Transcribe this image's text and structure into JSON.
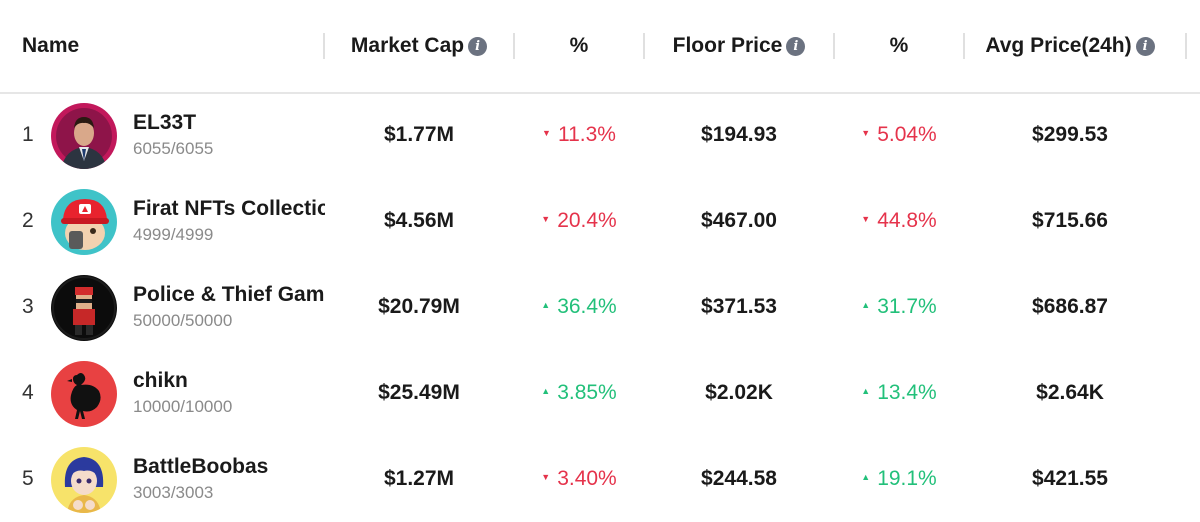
{
  "header": {
    "name": "Name",
    "market_cap": "Market Cap",
    "pct1": "%",
    "floor_price": "Floor Price",
    "pct2": "%",
    "avg_price": "Avg Price(24h)",
    "info_glyph": "i"
  },
  "colors": {
    "down": "#e5334b",
    "up": "#22c07a",
    "info_icon": "#6b7280"
  },
  "rows": [
    {
      "rank": "1",
      "name": "EL33T",
      "count": "6055/6055",
      "market_cap": "$1.77M",
      "change1": "11.3%",
      "dir1": "down",
      "arrow1": "▼",
      "floor": "$194.93",
      "change2": "5.04%",
      "dir2": "down",
      "arrow2": "▼",
      "avg": "$299.53",
      "avatar": "man-in-suit-avatar"
    },
    {
      "rank": "2",
      "name": "Firat NFTs Collection",
      "count": "4999/4999",
      "market_cap": "$4.56M",
      "change1": "20.4%",
      "dir1": "down",
      "arrow1": "▼",
      "floor": "$467.00",
      "change2": "44.8%",
      "dir2": "down",
      "arrow2": "▼",
      "avg": "$715.66",
      "avatar": "red-cap-character-avatar"
    },
    {
      "rank": "3",
      "name": "Police & Thief Game",
      "count": "50000/50000",
      "market_cap": "$20.79M",
      "change1": "36.4%",
      "dir1": "up",
      "arrow1": "▲",
      "floor": "$371.53",
      "change2": "31.7%",
      "dir2": "up",
      "arrow2": "▲",
      "avg": "$686.87",
      "avatar": "masked-thief-avatar"
    },
    {
      "rank": "4",
      "name": "chikn",
      "count": "10000/10000",
      "market_cap": "$25.49M",
      "change1": "3.85%",
      "dir1": "up",
      "arrow1": "▲",
      "floor": "$2.02K",
      "change2": "13.4%",
      "dir2": "up",
      "arrow2": "▲",
      "avg": "$2.64K",
      "avatar": "chicken-silhouette-avatar"
    },
    {
      "rank": "5",
      "name": "BattleBoobas",
      "count": "3003/3003",
      "market_cap": "$1.27M",
      "change1": "3.40%",
      "dir1": "down",
      "arrow1": "▼",
      "floor": "$244.58",
      "change2": "19.1%",
      "dir2": "up",
      "arrow2": "▲",
      "avg": "$421.55",
      "avatar": "anime-girl-avatar"
    }
  ]
}
